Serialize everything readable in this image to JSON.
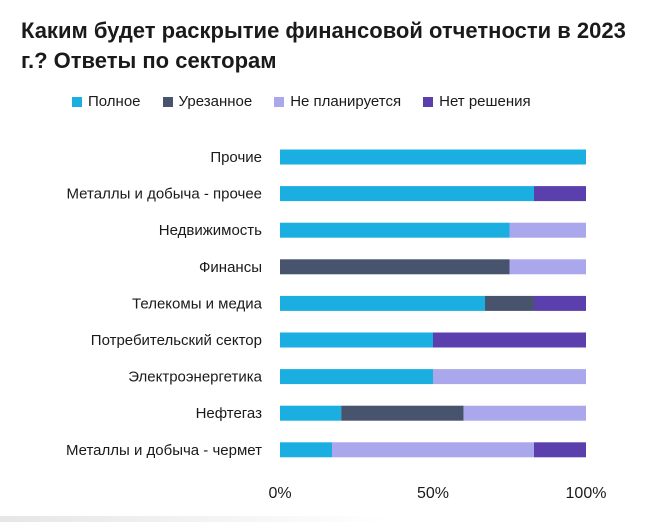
{
  "chart_data": {
    "type": "bar",
    "orientation": "horizontal",
    "stacked": true,
    "title": "Каким будет раскрытие финансовой отчетности в 2023 г.? Ответы по секторам",
    "categories": [
      "Прочие",
      "Металлы и добыча - прочее",
      "Недвижимость",
      "Финансы",
      "Телекомы и медиа",
      "Потребительский сектор",
      "Электроэнергетика",
      "Нефтегаз",
      "Металлы и добыча - чермет"
    ],
    "series": [
      {
        "name": "Полное",
        "color": "#1aafe0",
        "values": [
          100,
          83,
          75,
          0,
          67,
          50,
          50,
          20,
          17
        ]
      },
      {
        "name": "Урезанное",
        "color": "#48536e",
        "values": [
          0,
          0,
          0,
          75,
          16,
          0,
          0,
          40,
          0
        ]
      },
      {
        "name": "Не планируется",
        "color": "#aba7ec",
        "values": [
          0,
          0,
          25,
          25,
          0,
          0,
          50,
          40,
          66
        ]
      },
      {
        "name": "Нет решения",
        "color": "#5a3fad",
        "values": [
          0,
          17,
          0,
          0,
          17,
          50,
          0,
          0,
          17
        ]
      }
    ],
    "xlim": [
      0,
      100
    ],
    "xticks": [
      0,
      50,
      100
    ],
    "xtick_labels": [
      "0%",
      "50%",
      "100%"
    ],
    "legend_position": "top",
    "grid": false
  }
}
